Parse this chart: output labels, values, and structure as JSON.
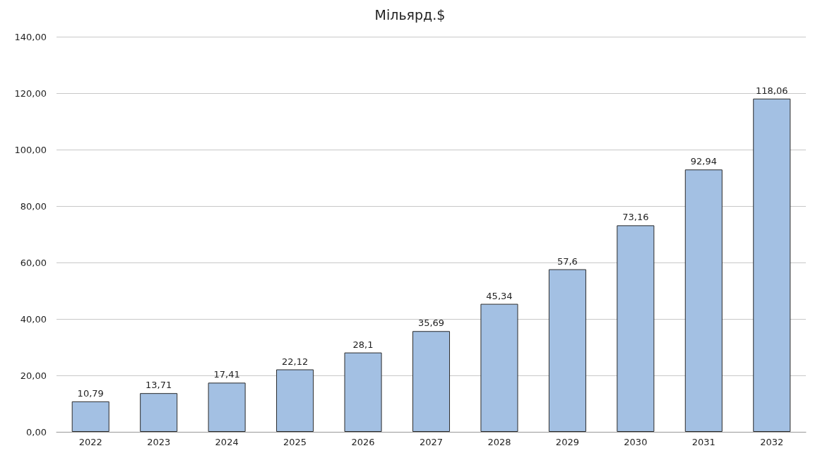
{
  "chart_data": {
    "type": "bar",
    "title": "Мільярд.$",
    "categories": [
      "2022",
      "2023",
      "2024",
      "2025",
      "2026",
      "2027",
      "2028",
      "2029",
      "2030",
      "2031",
      "2032"
    ],
    "values": [
      10.79,
      13.71,
      17.41,
      22.12,
      28.1,
      35.69,
      45.34,
      57.6,
      73.16,
      92.94,
      118.06
    ],
    "value_labels": [
      "10,79",
      "13,71",
      "17,41",
      "22,12",
      "28,1",
      "35,69",
      "45,34",
      "57,6",
      "73,16",
      "92,94",
      "118,06"
    ],
    "color": "#a3c0e3",
    "ylim": [
      0,
      140
    ],
    "yticks": [
      {
        "value": 0,
        "label": "0,00"
      },
      {
        "value": 20,
        "label": "20,00"
      },
      {
        "value": 40,
        "label": "40,00"
      },
      {
        "value": 60,
        "label": "60,00"
      },
      {
        "value": 80,
        "label": "80,00"
      },
      {
        "value": 100,
        "label": "100,00"
      },
      {
        "value": 120,
        "label": "120,00"
      },
      {
        "value": 140,
        "label": "140,00"
      }
    ],
    "grid": "y"
  }
}
